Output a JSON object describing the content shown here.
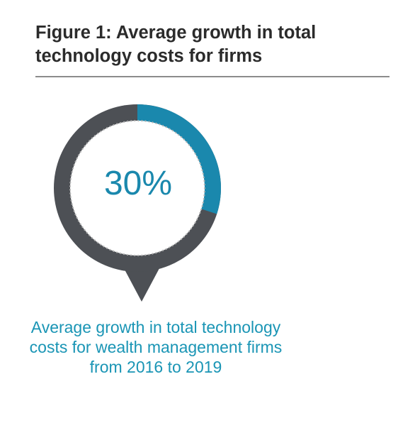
{
  "title": "Figure 1: Average growth in total technology costs for firms",
  "chart_data": {
    "type": "pie",
    "value": 30,
    "value_label": "30%",
    "max": 100,
    "caption": "Average growth in total technology costs for wealth management firms from 2016 to 2019"
  },
  "colors": {
    "accent": "#1a88ad",
    "track": "#4d5055",
    "caption": "#1a95b5",
    "title": "#2b2b2b",
    "rule": "#8c8c8c"
  }
}
